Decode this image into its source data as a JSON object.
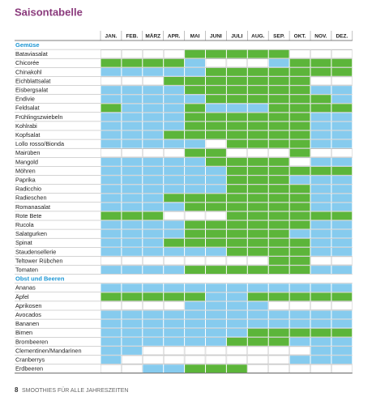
{
  "title": "Saisontabelle",
  "months": [
    "JAN.",
    "FEB.",
    "MÄRZ",
    "APR.",
    "MAI",
    "JUNI",
    "JULI",
    "AUG.",
    "SEP.",
    "OKT.",
    "NOV.",
    "DEZ."
  ],
  "table": {
    "sections": [
      {
        "heading": "Gemüse",
        "rows": [
          {
            "name": "Bataviasalat",
            "cells": [
              "w",
              "w",
              "w",
              "w",
              "g",
              "g",
              "g",
              "g",
              "g",
              "w",
              "w",
              "w"
            ]
          },
          {
            "name": "Chicorée",
            "cells": [
              "g",
              "g",
              "g",
              "g",
              "b",
              "w",
              "w",
              "w",
              "b",
              "g",
              "g",
              "g"
            ]
          },
          {
            "name": "Chinakohl",
            "cells": [
              "b",
              "b",
              "b",
              "b",
              "b",
              "g",
              "g",
              "g",
              "g",
              "g",
              "g",
              "g"
            ]
          },
          {
            "name": "Eichblattsalat",
            "cells": [
              "w",
              "w",
              "w",
              "g",
              "g",
              "g",
              "g",
              "g",
              "g",
              "g",
              "w",
              "w"
            ]
          },
          {
            "name": "Eisbergsalat",
            "cells": [
              "b",
              "b",
              "b",
              "b",
              "g",
              "g",
              "g",
              "g",
              "g",
              "g",
              "b",
              "b"
            ]
          },
          {
            "name": "Endivie",
            "cells": [
              "b",
              "b",
              "b",
              "b",
              "b",
              "g",
              "g",
              "g",
              "g",
              "g",
              "g",
              "b"
            ]
          },
          {
            "name": "Feldsalat",
            "cells": [
              "g",
              "b",
              "b",
              "b",
              "g",
              "b",
              "b",
              "b",
              "g",
              "g",
              "g",
              "g"
            ]
          },
          {
            "name": "Frühlingszwiebeln",
            "cells": [
              "b",
              "b",
              "b",
              "b",
              "g",
              "g",
              "g",
              "g",
              "g",
              "g",
              "b",
              "b"
            ]
          },
          {
            "name": "Kohlrabi",
            "cells": [
              "b",
              "b",
              "b",
              "b",
              "g",
              "g",
              "g",
              "g",
              "g",
              "g",
              "b",
              "b"
            ]
          },
          {
            "name": "Kopfsalat",
            "cells": [
              "b",
              "b",
              "b",
              "g",
              "g",
              "g",
              "g",
              "g",
              "g",
              "g",
              "b",
              "b"
            ]
          },
          {
            "name": "Lollo rosso/Bionda",
            "cells": [
              "b",
              "b",
              "b",
              "b",
              "b",
              "w",
              "g",
              "g",
              "g",
              "g",
              "b",
              "b"
            ]
          },
          {
            "name": "Mairüben",
            "cells": [
              "w",
              "w",
              "w",
              "w",
              "g",
              "g",
              "w",
              "w",
              "w",
              "g",
              "w",
              "w"
            ]
          },
          {
            "name": "Mangold",
            "cells": [
              "b",
              "b",
              "b",
              "b",
              "b",
              "g",
              "g",
              "g",
              "g",
              "w",
              "b",
              "b"
            ]
          },
          {
            "name": "Möhren",
            "cells": [
              "b",
              "b",
              "b",
              "b",
              "b",
              "b",
              "g",
              "g",
              "g",
              "g",
              "g",
              "g"
            ]
          },
          {
            "name": "Paprika",
            "cells": [
              "b",
              "b",
              "b",
              "b",
              "b",
              "b",
              "g",
              "g",
              "g",
              "b",
              "b",
              "b"
            ]
          },
          {
            "name": "Radicchio",
            "cells": [
              "b",
              "b",
              "b",
              "b",
              "b",
              "b",
              "g",
              "g",
              "g",
              "g",
              "b",
              "b"
            ]
          },
          {
            "name": "Radieschen",
            "cells": [
              "b",
              "b",
              "b",
              "g",
              "g",
              "g",
              "g",
              "g",
              "g",
              "g",
              "b",
              "b"
            ]
          },
          {
            "name": "Romanasalat",
            "cells": [
              "b",
              "b",
              "b",
              "b",
              "g",
              "g",
              "g",
              "g",
              "g",
              "g",
              "b",
              "b"
            ]
          },
          {
            "name": "Rote Bete",
            "cells": [
              "g",
              "g",
              "g",
              "w",
              "w",
              "w",
              "g",
              "g",
              "g",
              "g",
              "g",
              "g"
            ]
          },
          {
            "name": "Rucola",
            "cells": [
              "b",
              "b",
              "b",
              "b",
              "g",
              "g",
              "g",
              "g",
              "g",
              "g",
              "b",
              "b"
            ]
          },
          {
            "name": "Salatgurken",
            "cells": [
              "b",
              "b",
              "b",
              "b",
              "g",
              "g",
              "g",
              "g",
              "g",
              "b",
              "b",
              "b"
            ]
          },
          {
            "name": "Spinat",
            "cells": [
              "b",
              "b",
              "b",
              "g",
              "g",
              "g",
              "g",
              "g",
              "g",
              "g",
              "b",
              "b"
            ]
          },
          {
            "name": "Staudensellerie",
            "cells": [
              "b",
              "b",
              "b",
              "b",
              "b",
              "b",
              "g",
              "g",
              "g",
              "g",
              "b",
              "b"
            ]
          },
          {
            "name": "Teltower Rübchen",
            "cells": [
              "w",
              "w",
              "w",
              "w",
              "w",
              "w",
              "w",
              "w",
              "g",
              "g",
              "w",
              "w"
            ]
          },
          {
            "name": "Tomaten",
            "cells": [
              "b",
              "b",
              "b",
              "b",
              "g",
              "g",
              "g",
              "g",
              "g",
              "g",
              "b",
              "b"
            ]
          }
        ]
      },
      {
        "heading": "Obst und Beeren",
        "rows": [
          {
            "name": "Ananas",
            "cells": [
              "b",
              "b",
              "b",
              "b",
              "b",
              "b",
              "b",
              "b",
              "b",
              "b",
              "b",
              "b"
            ]
          },
          {
            "name": "Äpfel",
            "cells": [
              "g",
              "g",
              "g",
              "g",
              "g",
              "b",
              "b",
              "g",
              "g",
              "g",
              "g",
              "g"
            ]
          },
          {
            "name": "Aprikosen",
            "cells": [
              "w",
              "w",
              "w",
              "w",
              "b",
              "b",
              "b",
              "b",
              "w",
              "w",
              "w",
              "w"
            ]
          },
          {
            "name": "Avocados",
            "cells": [
              "b",
              "b",
              "b",
              "b",
              "b",
              "b",
              "b",
              "b",
              "b",
              "b",
              "b",
              "b"
            ]
          },
          {
            "name": "Bananen",
            "cells": [
              "b",
              "b",
              "b",
              "b",
              "b",
              "b",
              "b",
              "b",
              "b",
              "b",
              "b",
              "b"
            ]
          },
          {
            "name": "Birnen",
            "cells": [
              "b",
              "b",
              "b",
              "b",
              "b",
              "b",
              "b",
              "g",
              "g",
              "g",
              "g",
              "g"
            ]
          },
          {
            "name": "Brombeeren",
            "cells": [
              "b",
              "b",
              "b",
              "b",
              "b",
              "b",
              "g",
              "g",
              "g",
              "b",
              "b",
              "b"
            ]
          },
          {
            "name": "Clementinen/Mandarinen",
            "cells": [
              "b",
              "b",
              "w",
              "w",
              "w",
              "w",
              "w",
              "w",
              "w",
              "w",
              "b",
              "b"
            ]
          },
          {
            "name": "Cranberrys",
            "cells": [
              "b",
              "w",
              "w",
              "w",
              "w",
              "w",
              "w",
              "w",
              "w",
              "b",
              "b",
              "b"
            ]
          },
          {
            "name": "Erdbeeren",
            "cells": [
              "w",
              "w",
              "b",
              "b",
              "g",
              "g",
              "g",
              "w",
              "w",
              "w",
              "w",
              "w"
            ]
          }
        ]
      }
    ]
  },
  "footer": {
    "page": "8",
    "text": "SMOOTHIES FÜR ALLE JAHRESZEITEN"
  }
}
